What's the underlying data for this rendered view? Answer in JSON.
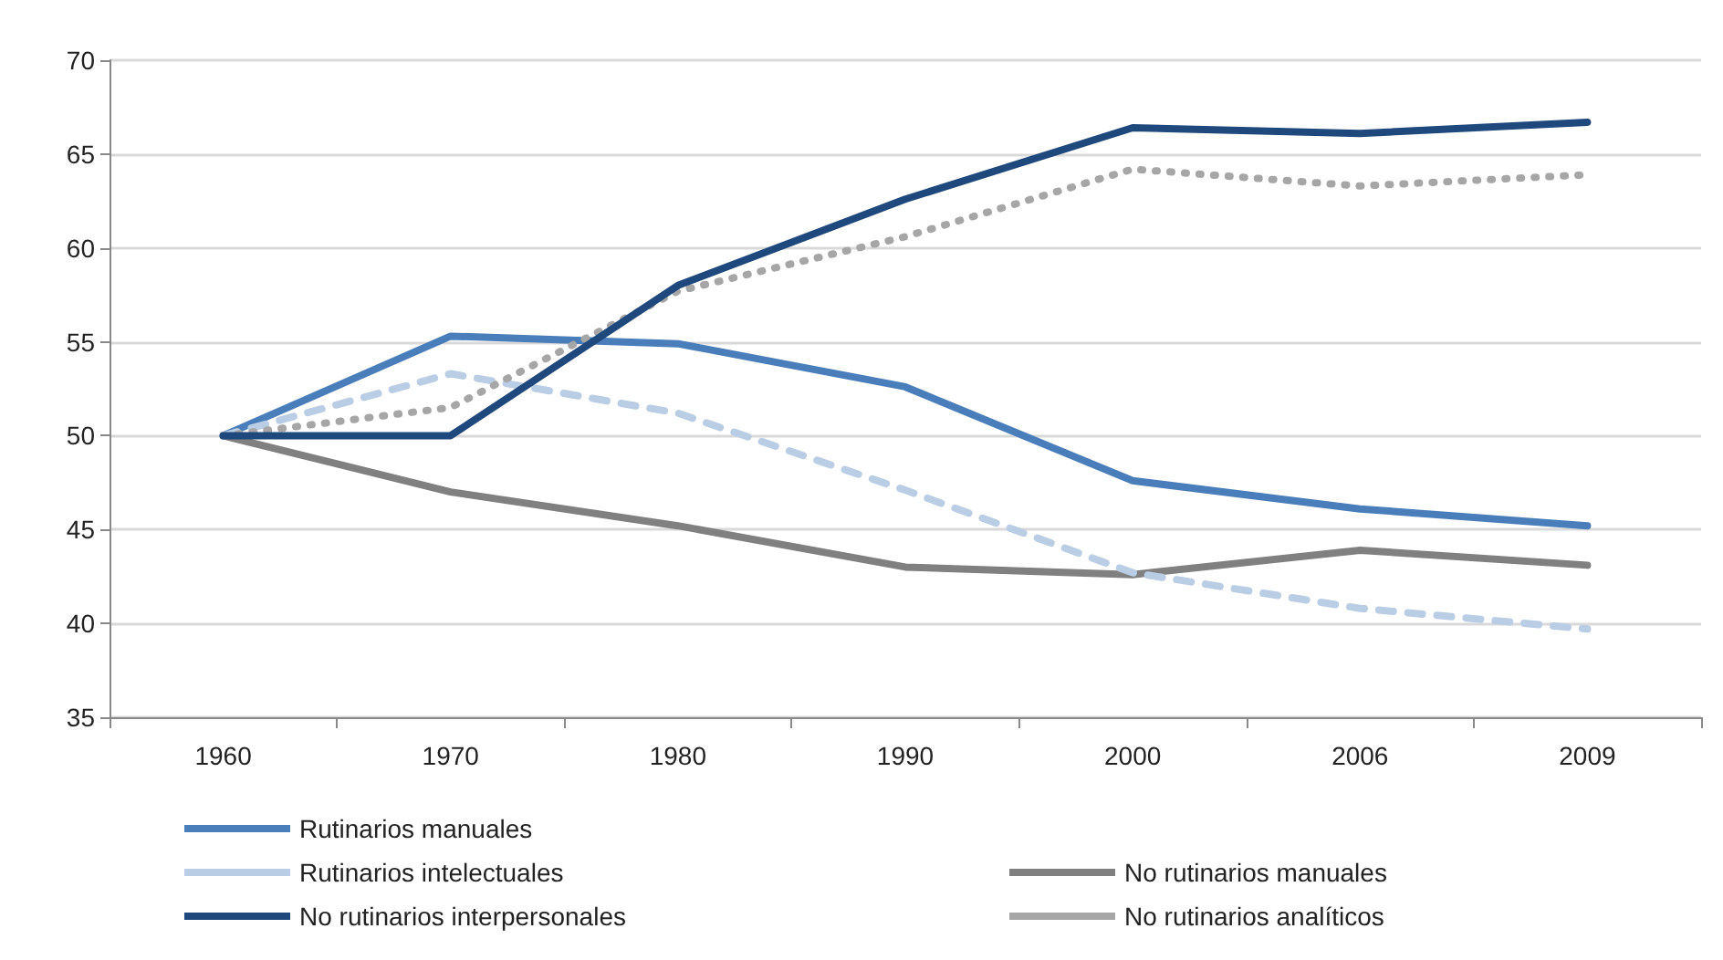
{
  "chart_data": {
    "type": "line",
    "categories": [
      "1960",
      "1970",
      "1980",
      "1990",
      "2000",
      "2006",
      "2009"
    ],
    "series": [
      {
        "name": "Rutinarios manuales",
        "color": "#4a7ebb",
        "values": [
          50,
          55.3,
          54.9,
          52.6,
          47.6,
          46.1,
          45.2
        ]
      },
      {
        "name": "No rutinarios manuales",
        "color": "#808080",
        "values": [
          50,
          47.0,
          45.2,
          43.0,
          42.6,
          43.9,
          43.1
        ]
      },
      {
        "name": "Rutinarios intelectuales",
        "color": "#b9cde5",
        "line_style": "dashed",
        "values": [
          50,
          53.3,
          51.2,
          47.1,
          42.7,
          40.8,
          39.7
        ]
      },
      {
        "name": "No rutinarios analíticos",
        "color": "#a6a6a6",
        "line_style": "dotted",
        "values": [
          50,
          51.5,
          57.7,
          60.6,
          64.2,
          63.3,
          63.9
        ]
      },
      {
        "name": "No rutinarios interpersonales",
        "color": "#1f497d",
        "values": [
          50,
          50,
          58.0,
          62.6,
          66.4,
          66.1,
          66.7
        ]
      }
    ],
    "ylim": [
      35,
      70
    ],
    "yticks": [
      35,
      40,
      45,
      50,
      55,
      60,
      65,
      70
    ],
    "grid": "y",
    "legend": "bottom",
    "marker": "none",
    "line_style": "solid"
  }
}
